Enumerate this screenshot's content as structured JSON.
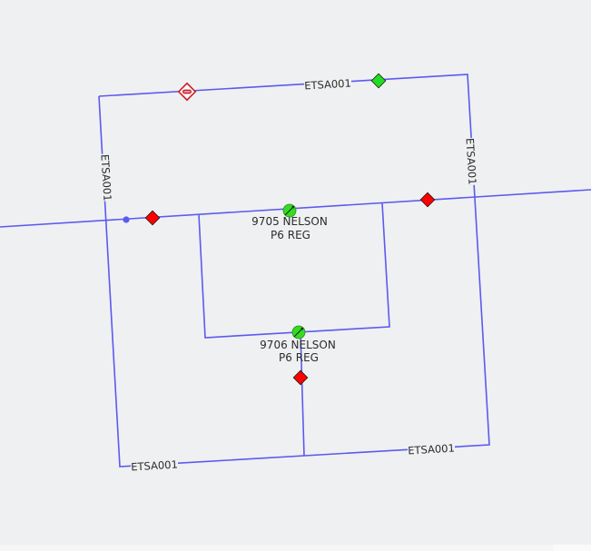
{
  "map": {
    "colors": {
      "background": "#eff0f1",
      "line": "#5a5af0",
      "switch_open": "#ff0000",
      "switch_closed": "#22dd22",
      "regulator": "#33dd22",
      "node": "#5a5af0"
    },
    "line_labels": {
      "top": "ETSA001",
      "left": "ETSA001",
      "right": "ETSA001",
      "bottom_left": "ETSA001",
      "bottom_right": "ETSA001"
    },
    "regulators": [
      {
        "line1": "9705 NELSON",
        "line2": "P6 REG",
        "icon": "regulator-icon"
      },
      {
        "line1": "9706 NELSON",
        "line2": "P6 REG",
        "icon": "regulator-icon"
      }
    ],
    "symbols": {
      "fuse": "fuse-icon",
      "open_switch": "red-diamond-switch-icon",
      "closed_switch": "green-diamond-switch-icon",
      "node": "node-dot-icon"
    }
  }
}
